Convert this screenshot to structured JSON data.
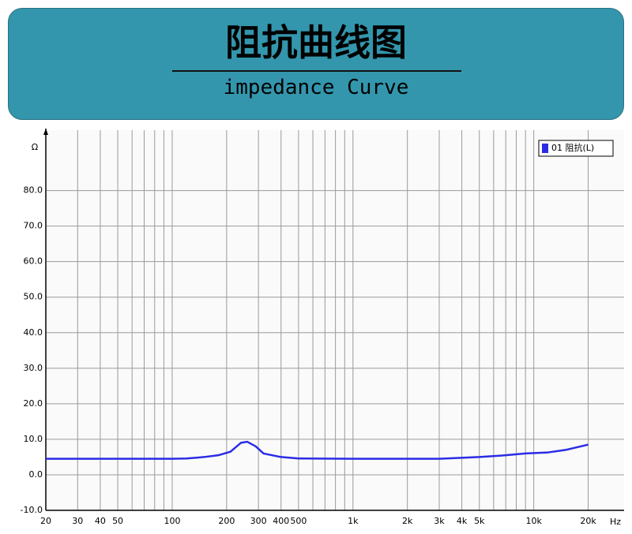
{
  "header": {
    "title": "阻抗曲线图",
    "subtitle": "impedance Curve"
  },
  "chart_data": {
    "type": "line",
    "log_x": true,
    "grid": true,
    "y_unit": "Ω",
    "x_unit": "Hz",
    "xlim": [
      20,
      31600
    ],
    "ylim": [
      -10,
      97
    ],
    "xticks": [
      20,
      30,
      40,
      50,
      100,
      200,
      300,
      400,
      500,
      {
        "value": 1000,
        "label": "1k"
      },
      {
        "value": 2000,
        "label": "2k"
      },
      {
        "value": 3000,
        "label": "3k"
      },
      {
        "value": 4000,
        "label": "4k"
      },
      {
        "value": 5000,
        "label": "5k"
      },
      {
        "value": 10000,
        "label": "10k"
      },
      {
        "value": 20000,
        "label": "20k"
      }
    ],
    "xminor": [
      60,
      70,
      80,
      90,
      600,
      700,
      800,
      900,
      6000,
      7000,
      8000,
      9000
    ],
    "yticks": [
      {
        "value": -10,
        "label": "-10.0"
      },
      {
        "value": 0,
        "label": "0.0"
      },
      {
        "value": 10,
        "label": "10.0"
      },
      {
        "value": 20,
        "label": "20.0"
      },
      {
        "value": 30,
        "label": "30.0"
      },
      {
        "value": 40,
        "label": "40.0"
      },
      {
        "value": 50,
        "label": "50.0"
      },
      {
        "value": 60,
        "label": "60.0"
      },
      {
        "value": 70,
        "label": "70.0"
      },
      {
        "value": 80,
        "label": "80.0"
      }
    ],
    "x": [
      20,
      50,
      100,
      120,
      150,
      180,
      210,
      240,
      260,
      290,
      320,
      400,
      500,
      1000,
      3000,
      4000,
      5000,
      7000,
      9000,
      12000,
      15000,
      20000
    ],
    "series": [
      {
        "name": "01 阻抗(L)",
        "color": "#2b2be6",
        "values": [
          4.5,
          4.5,
          4.5,
          4.6,
          5,
          5.5,
          6.5,
          9,
          9.3,
          8,
          6,
          5,
          4.6,
          4.5,
          4.5,
          4.8,
          5,
          5.5,
          6,
          6.3,
          7,
          8.5
        ]
      }
    ]
  }
}
